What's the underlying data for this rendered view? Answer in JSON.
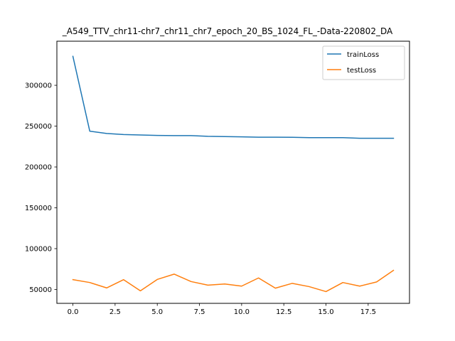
{
  "chart_data": {
    "type": "line",
    "title": "_A549_TTV_chr11-chr7_chr11_chr7_epoch_20_BS_1024_FL_-Data-220802_DA",
    "xlabel": "",
    "ylabel": "",
    "xlim": [
      -0.95,
      19.95
    ],
    "ylim": [
      33000,
      354000
    ],
    "x_ticks": [
      0,
      2.5,
      5,
      7.5,
      10,
      12.5,
      15,
      17.5
    ],
    "x_tick_labels": [
      "0.0",
      "2.5",
      "5.0",
      "7.5",
      "10.0",
      "12.5",
      "15.0",
      "17.5"
    ],
    "y_ticks": [
      50000,
      100000,
      150000,
      200000,
      250000,
      300000
    ],
    "y_tick_labels": [
      "50000",
      "100000",
      "150000",
      "200000",
      "250000",
      "300000"
    ],
    "grid": false,
    "legend_position": "upper right",
    "x": [
      0,
      1,
      2,
      3,
      4,
      5,
      6,
      7,
      8,
      9,
      10,
      11,
      12,
      13,
      14,
      15,
      16,
      17,
      18,
      19
    ],
    "series": [
      {
        "name": "trainLoss",
        "color": "#1f77b4",
        "values": [
          335500,
          243800,
          241000,
          239700,
          239200,
          238600,
          238400,
          238400,
          237500,
          237200,
          236900,
          236500,
          236500,
          236300,
          235900,
          235900,
          235900,
          235100,
          235100,
          235100
        ]
      },
      {
        "name": "testLoss",
        "color": "#ff7f0e",
        "values": [
          62000,
          58500,
          51900,
          62000,
          48300,
          62300,
          68800,
          59700,
          55300,
          56700,
          54100,
          64100,
          51600,
          57500,
          53500,
          47400,
          58500,
          54100,
          59200,
          73400
        ]
      }
    ]
  }
}
